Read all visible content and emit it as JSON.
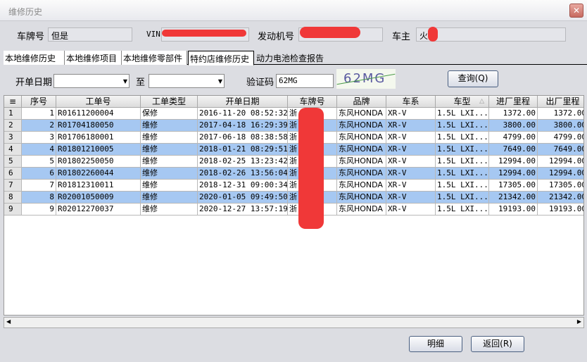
{
  "window": {
    "title": "维修历史",
    "close_icon": "close-icon"
  },
  "info": {
    "plate_label": "车牌号",
    "plate_value": "但是",
    "vin_label": "VIN",
    "vin_value": "",
    "engine_label": "发动机号",
    "engine_value": "",
    "owner_label": "车主",
    "owner_value": "火"
  },
  "tabs": [
    {
      "label": "本地维修历史",
      "active": false
    },
    {
      "label": "本地维修项目",
      "active": false
    },
    {
      "label": "本地维修零部件",
      "active": false
    },
    {
      "label": "特约店维修历史",
      "active": true
    },
    {
      "label": "动力电池检查报告",
      "active": false
    }
  ],
  "filter": {
    "date_label": "开单日期",
    "to_label": "至",
    "date_from": "",
    "date_to": "",
    "captcha_label": "验证码",
    "captcha_value": "62MG",
    "captcha_image_text": "62MG",
    "query_button": "查询(Q)"
  },
  "table": {
    "columns": [
      "序号",
      "工单号",
      "工单类型",
      "开单日期",
      "车牌号",
      "品牌",
      "车系",
      "车型",
      "进厂里程",
      "出厂里程"
    ],
    "sort_column": "车型",
    "rows": [
      [
        "1",
        "R01611200004",
        "保修",
        "2016-11-20 08:52:32",
        "浙",
        "东风HONDA",
        "XR-V",
        "1.5L LXI...",
        "1372.00",
        "1372.00"
      ],
      [
        "2",
        "R01704180050",
        "维修",
        "2017-04-18 16:29:39",
        "浙",
        "东风HONDA",
        "XR-V",
        "1.5L LXI...",
        "3800.00",
        "3800.00"
      ],
      [
        "3",
        "R01706180001",
        "维修",
        "2017-06-18 08:38:58",
        "浙",
        "东风HONDA",
        "XR-V",
        "1.5L LXI...",
        "4799.00",
        "4799.00"
      ],
      [
        "4",
        "R01801210005",
        "维修",
        "2018-01-21 08:29:51",
        "浙",
        "东风HONDA",
        "XR-V",
        "1.5L LXI...",
        "7649.00",
        "7649.00"
      ],
      [
        "5",
        "R01802250050",
        "维修",
        "2018-02-25 13:23:42",
        "浙",
        "东风HONDA",
        "XR-V",
        "1.5L LXI...",
        "12994.00",
        "12994.00"
      ],
      [
        "6",
        "R01802260044",
        "维修",
        "2018-02-26 13:56:04",
        "浙",
        "东风HONDA",
        "XR-V",
        "1.5L LXI...",
        "12994.00",
        "12994.00"
      ],
      [
        "7",
        "R01812310011",
        "维修",
        "2018-12-31 09:00:34",
        "浙",
        "东风HONDA",
        "XR-V",
        "1.5L LXI...",
        "17305.00",
        "17305.00"
      ],
      [
        "8",
        "R02001050009",
        "维修",
        "2020-01-05 09:49:50",
        "浙",
        "东风HONDA",
        "XR-V",
        "1.5L LXI...",
        "21342.00",
        "21342.00"
      ],
      [
        "9",
        "R02012270037",
        "维修",
        "2020-12-27 13:57:19",
        "浙",
        "东风HONDA",
        "XR-V",
        "1.5L LXI...",
        "19193.00",
        "19193.00"
      ]
    ]
  },
  "footer": {
    "detail_button": "明细",
    "back_button": "返回(R)"
  },
  "colors": {
    "row_alt": "#a6c8f2",
    "row": "#ffffff",
    "redaction": "#f03838"
  }
}
